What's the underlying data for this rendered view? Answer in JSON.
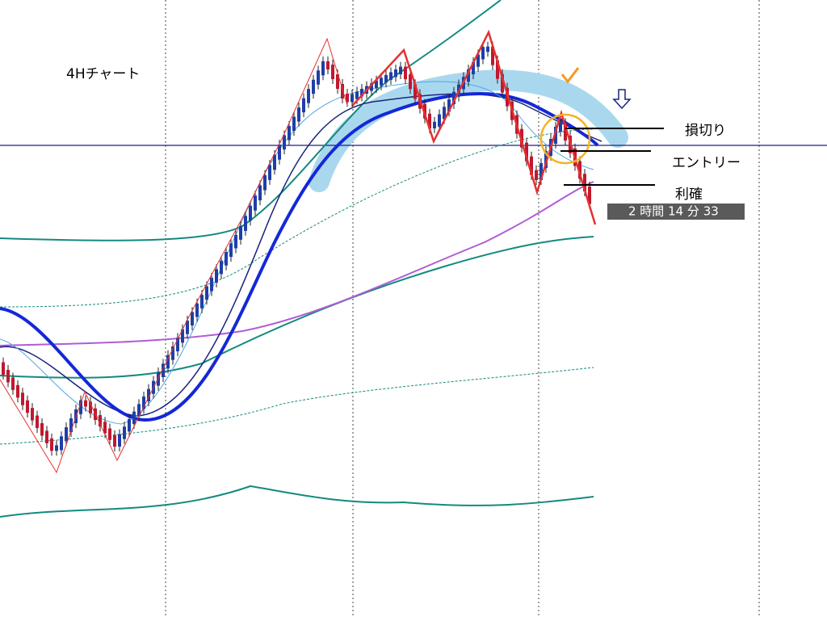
{
  "header": {
    "title": "4Hチャート"
  },
  "annotations": {
    "stop_loss": "損切り",
    "entry": "エントリー",
    "take_profit": "利確"
  },
  "timer": "2 時間 14 分 33"
}
